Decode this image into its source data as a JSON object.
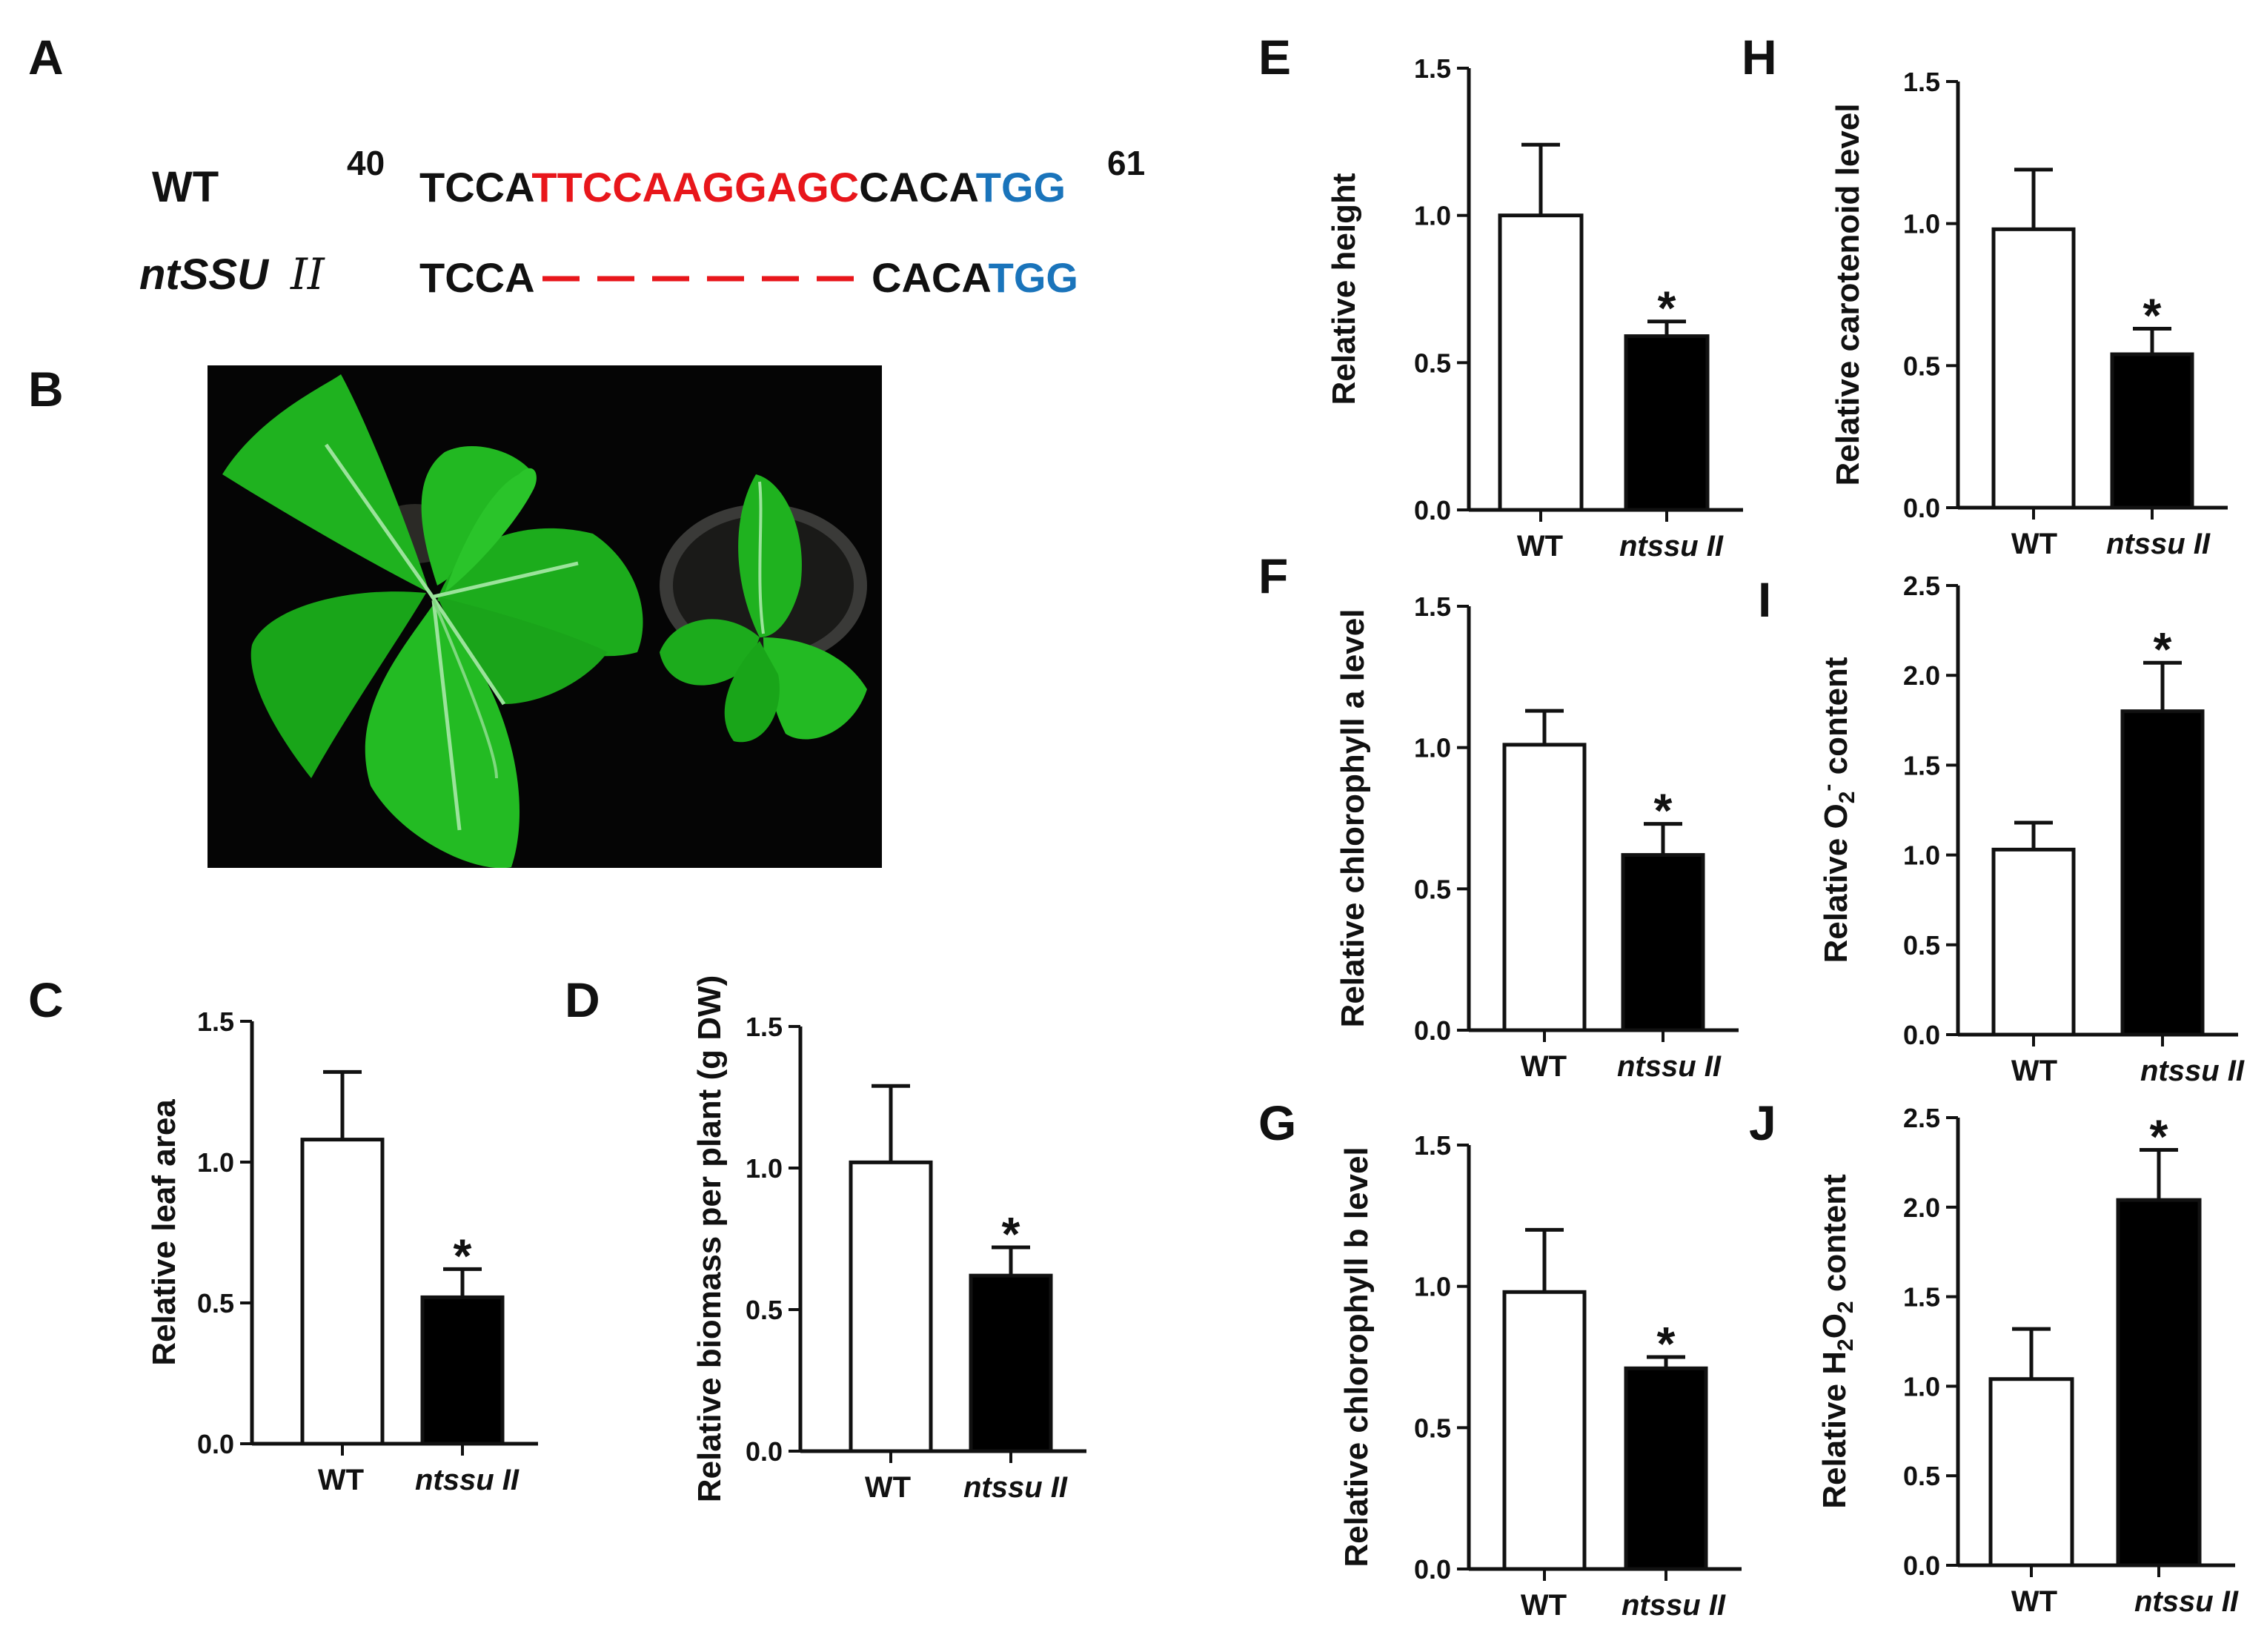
{
  "panel_labels": {
    "A": "A",
    "B": "B",
    "C": "C",
    "D": "D",
    "E": "E",
    "F": "F",
    "G": "G",
    "H": "H",
    "I": "I",
    "J": "J"
  },
  "sequence": {
    "wt_label": "WT",
    "mut_label_base": "ntSSU",
    "mut_label_suffix": "II",
    "start_num": "40",
    "end_num": "61",
    "wt_left": "TCCA",
    "wt_target": "TTCCAAGGAGC",
    "wt_mid": "CACA",
    "wt_pam": "TGG",
    "mut_left": "TCCA",
    "mut_mid": "CACA",
    "mut_pam": "TGG",
    "colors": {
      "target": "#e8161b",
      "pam": "#1a74bb",
      "text": "#111111"
    }
  },
  "photo": {
    "background": "#050505",
    "leaf_color": "#1fb21f",
    "pot_color": "#3a3a38"
  },
  "categories": [
    "WT",
    "ntssu II"
  ],
  "significance": "*",
  "chart_data": [
    {
      "id": "C",
      "type": "bar",
      "ylabel": "Relative leaf area",
      "ylim": [
        0,
        1.5
      ],
      "yticks": [
        "0.0",
        "0.5",
        "1.0",
        "1.5"
      ],
      "categories": [
        "WT",
        "ntssu II"
      ],
      "values": [
        1.08,
        0.52
      ],
      "errors": [
        0.24,
        0.1
      ],
      "fills": [
        "#ffffff",
        "#000000"
      ]
    },
    {
      "id": "D",
      "type": "bar",
      "ylabel": "Relative biomass per plant (g DW)",
      "ylim": [
        0,
        1.5
      ],
      "yticks": [
        "0.0",
        "0.5",
        "1.0",
        "1.5"
      ],
      "categories": [
        "WT",
        "ntssu II"
      ],
      "values": [
        1.02,
        0.62
      ],
      "errors": [
        0.27,
        0.1
      ],
      "fills": [
        "#ffffff",
        "#000000"
      ]
    },
    {
      "id": "E",
      "type": "bar",
      "ylabel": "Relative height",
      "ylim": [
        0,
        1.5
      ],
      "yticks": [
        "0.0",
        "0.5",
        "1.0",
        "1.5"
      ],
      "categories": [
        "WT",
        "ntssu II"
      ],
      "values": [
        1.0,
        0.59
      ],
      "errors": [
        0.24,
        0.05
      ],
      "fills": [
        "#ffffff",
        "#000000"
      ]
    },
    {
      "id": "F",
      "type": "bar",
      "ylabel": "Relative chlorophyll a level",
      "ylim": [
        0,
        1.5
      ],
      "yticks": [
        "0.0",
        "0.5",
        "1.0",
        "1.5"
      ],
      "categories": [
        "WT",
        "ntssu II"
      ],
      "values": [
        1.01,
        0.62
      ],
      "errors": [
        0.12,
        0.11
      ],
      "fills": [
        "#ffffff",
        "#000000"
      ]
    },
    {
      "id": "G",
      "type": "bar",
      "ylabel": "Relative chlorophyll b level",
      "ylim": [
        0,
        1.5
      ],
      "yticks": [
        "0.0",
        "0.5",
        "1.0",
        "1.5"
      ],
      "categories": [
        "WT",
        "ntssu II"
      ],
      "values": [
        0.98,
        0.71
      ],
      "errors": [
        0.22,
        0.04
      ],
      "fills": [
        "#ffffff",
        "#000000"
      ]
    },
    {
      "id": "H",
      "type": "bar",
      "ylabel": "Relative carotenoid level",
      "ylim": [
        0,
        1.5
      ],
      "yticks": [
        "0.0",
        "0.5",
        "1.0",
        "1.5"
      ],
      "categories": [
        "WT",
        "ntssu II"
      ],
      "values": [
        0.98,
        0.54
      ],
      "errors": [
        0.21,
        0.09
      ],
      "fills": [
        "#ffffff",
        "#000000"
      ]
    },
    {
      "id": "I",
      "type": "bar",
      "ylabel": "Relative O2- content",
      "ylim": [
        0,
        2.5
      ],
      "yticks": [
        "0.0",
        "0.5",
        "1.0",
        "1.5",
        "2.0",
        "2.5"
      ],
      "categories": [
        "WT",
        "ntssu II"
      ],
      "values": [
        1.03,
        1.8
      ],
      "errors": [
        0.15,
        0.27
      ],
      "fills": [
        "#ffffff",
        "#000000"
      ]
    },
    {
      "id": "J",
      "type": "bar",
      "ylabel": "Relative H2O2 content",
      "ylim": [
        0,
        2.5
      ],
      "yticks": [
        "0.0",
        "0.5",
        "1.0",
        "1.5",
        "2.0",
        "2.5"
      ],
      "categories": [
        "WT",
        "ntssu II"
      ],
      "values": [
        1.04,
        2.04
      ],
      "errors": [
        0.28,
        0.28
      ],
      "fills": [
        "#ffffff",
        "#000000"
      ]
    }
  ]
}
